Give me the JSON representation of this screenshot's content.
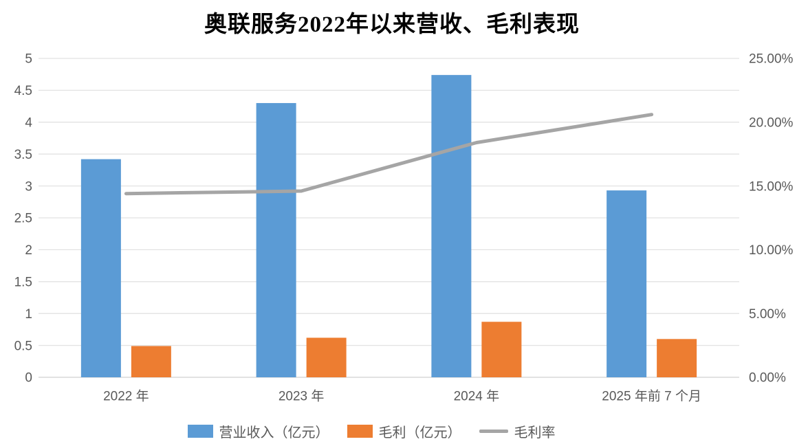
{
  "chart_data": {
    "type": "bar",
    "title": "奥联服务2022年以来营收、毛利表现",
    "categories": [
      "2022 年",
      "2023 年",
      "2024 年",
      "2025 年前 7 个月"
    ],
    "series": [
      {
        "name": "营业收入（亿元）",
        "kind": "bar",
        "axis": "left",
        "color": "#5B9BD5",
        "values": [
          3.42,
          4.3,
          4.74,
          2.93
        ]
      },
      {
        "name": "毛利（亿元）",
        "kind": "bar",
        "axis": "left",
        "color": "#ED7D31",
        "values": [
          0.49,
          0.62,
          0.87,
          0.6
        ]
      },
      {
        "name": "毛利率",
        "kind": "line",
        "axis": "right",
        "color": "#A5A5A5",
        "values": [
          14.4,
          14.6,
          18.4,
          20.6
        ]
      }
    ],
    "left_axis": {
      "min": 0,
      "max": 5,
      "step": 0.5,
      "tick_labels": [
        "0",
        "0.5",
        "1",
        "1.5",
        "2",
        "2.5",
        "3",
        "3.5",
        "4",
        "4.5",
        "5"
      ]
    },
    "right_axis": {
      "min": 0,
      "max": 25,
      "step": 5,
      "tick_labels": [
        "0.00%",
        "5.00%",
        "10.00%",
        "15.00%",
        "20.00%",
        "25.00%"
      ]
    },
    "grid": true,
    "legend_position": "bottom",
    "colors": {
      "grid_line": "#E2E2E2",
      "axis_line": "#D9D9D9",
      "tick_text": "#595959",
      "title_text": "#000000",
      "background": "#FFFFFF"
    }
  }
}
